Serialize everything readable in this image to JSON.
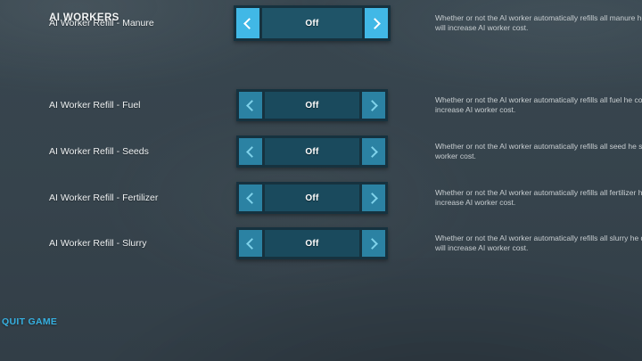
{
  "header": {
    "title": "AI WORKERS"
  },
  "footer": {
    "quit_label": "QUIT GAME"
  },
  "colors": {
    "bg": "#35424b",
    "accent": "#41b8e6",
    "button": "#2b82a3",
    "chevron": "#7fd2ea",
    "toggle-center": "#1a4a5d",
    "toggle-center-selected": "#1f5468",
    "toggle-border": "#16323f",
    "label-text": "#eef1f2",
    "desc-text": "#c7cdd0",
    "quit-text": "#36b0e0"
  },
  "settings": [
    {
      "label": "AI Worker Refill - Fuel",
      "value": "Off",
      "selected": false,
      "description_line1": "Whether or not the AI worker automatically refills all fuel he consumes. This will",
      "description_line2": "increase AI worker cost."
    },
    {
      "label": "AI Worker Refill - Seeds",
      "value": "Off",
      "selected": false,
      "description_line1": "Whether or not the AI worker automatically refills all seed he sows. This will increase AI",
      "description_line2": "worker cost."
    },
    {
      "label": "AI Worker Refill - Fertilizer",
      "value": "Off",
      "selected": false,
      "description_line1": "Whether or not the AI worker automatically refills all fertilizer he distributes. This will",
      "description_line2": "increase AI worker cost."
    },
    {
      "label": "AI Worker Refill - Slurry",
      "value": "Off",
      "selected": false,
      "description_line1": "Whether or not the AI worker automatically refills all slurry he distributes. This",
      "description_line2": "will increase AI worker cost."
    },
    {
      "label": "AI Worker Refill - Manure",
      "value": "Off",
      "selected": true,
      "description_line1": "Whether or not the AI worker automatically refills all manure he distributes. This",
      "description_line2": "will increase AI worker cost."
    }
  ]
}
